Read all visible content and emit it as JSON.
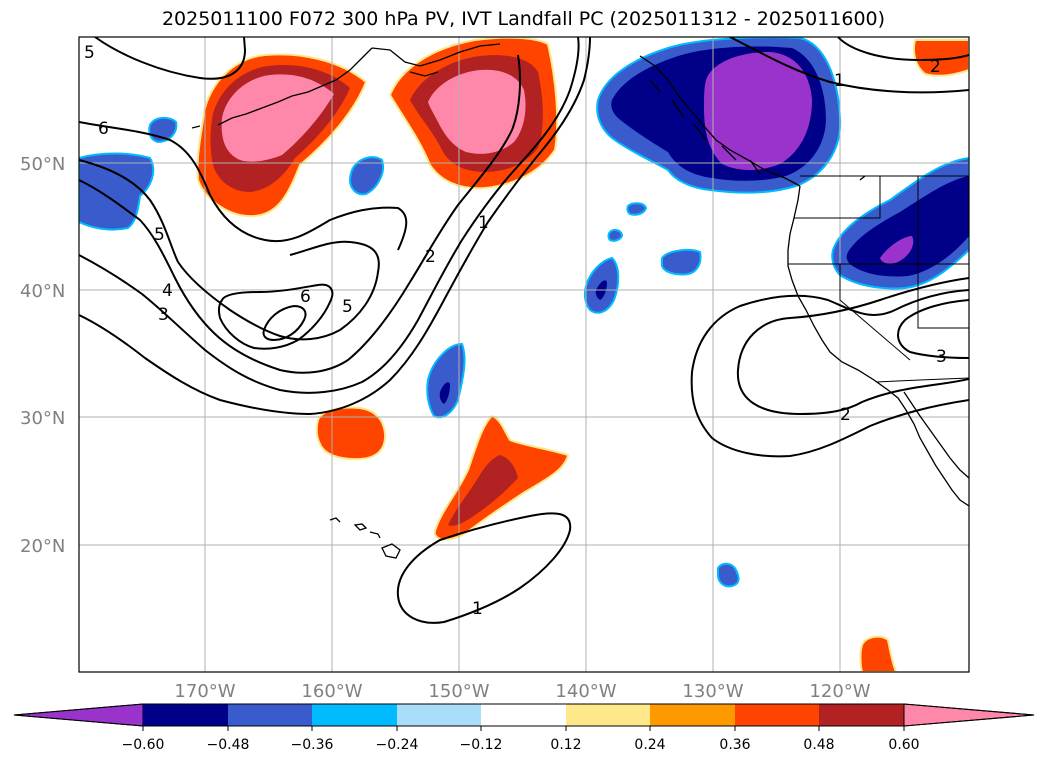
{
  "title": "2025011100 F072 300 hPa PV, IVT Landfall PC (2025011312 - 2025011600)",
  "lat_labels": [
    "50°N",
    "40°N",
    "30°N",
    "20°N"
  ],
  "lon_labels": [
    "170°W",
    "160°W",
    "150°W",
    "140°W",
    "130°W",
    "120°W"
  ],
  "contour_labels": [
    "5",
    "6",
    "5",
    "4",
    "3",
    "6",
    "5",
    "2",
    "1",
    "1",
    "2",
    "3",
    "2",
    "1"
  ],
  "colorbar": {
    "ticks": [
      "−0.60",
      "−0.48",
      "−0.36",
      "−0.24",
      "−0.12",
      "0.12",
      "0.24",
      "0.36",
      "0.48",
      "0.60"
    ],
    "colors": [
      "#9933cc",
      "#000088",
      "#3a5bcc",
      "#00bbff",
      "#aaddfa",
      "#ffffff",
      "#ffe88a",
      "#ff9900",
      "#ff4400",
      "#b22222",
      "#ff88aa"
    ]
  },
  "fill_colors": {
    "neg_light": "#3a5bcc",
    "neg_mid": "#000088",
    "neg_strong": "#9933cc",
    "pos_mid": "#ff4400",
    "pos_strong": "#b22222",
    "pos_max": "#ff88aa",
    "edge_pos": "#ffe88a",
    "edge_neg": "#00bbff"
  }
}
